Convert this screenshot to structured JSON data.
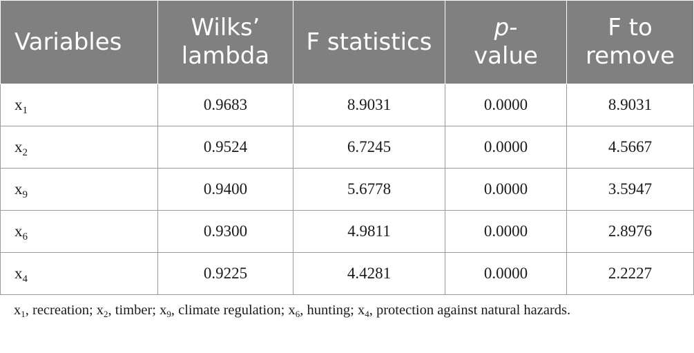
{
  "table": {
    "headers": {
      "variables": "Variables",
      "wilks_line1": "Wilks’",
      "wilks_line2": "lambda",
      "f_statistics": "F statistics",
      "p_line1": "p-",
      "p_line2": "value",
      "ftr_line1": "F to",
      "ftr_line2": "remove"
    },
    "rows": [
      {
        "var": "x",
        "sub": "1",
        "wilks": "0.9683",
        "f": "8.9031",
        "p": "0.0000",
        "ftr": "8.9031"
      },
      {
        "var": "x",
        "sub": "2",
        "wilks": "0.9524",
        "f": "6.7245",
        "p": "0.0000",
        "ftr": "4.5667"
      },
      {
        "var": "x",
        "sub": "9",
        "wilks": "0.9400",
        "f": "5.6778",
        "p": "0.0000",
        "ftr": "3.5947"
      },
      {
        "var": "x",
        "sub": "6",
        "wilks": "0.9300",
        "f": "4.9811",
        "p": "0.0000",
        "ftr": "2.8976"
      },
      {
        "var": "x",
        "sub": "4",
        "wilks": "0.9225",
        "f": "4.4281",
        "p": "0.0000",
        "ftr": "2.2227"
      }
    ]
  },
  "footnote": [
    {
      "var": "x",
      "sub": "1",
      "text": ", recreation; "
    },
    {
      "var": "x",
      "sub": "2",
      "text": ", timber; "
    },
    {
      "var": "x",
      "sub": "9",
      "text": ", climate regulation; "
    },
    {
      "var": "x",
      "sub": "6",
      "text": ", hunting; "
    },
    {
      "var": "x",
      "sub": "4",
      "text": ", protection against natural hazards."
    }
  ],
  "colors": {
    "header_bg": "#808080",
    "header_text": "#ffffff",
    "border": "#9a9a9a"
  }
}
